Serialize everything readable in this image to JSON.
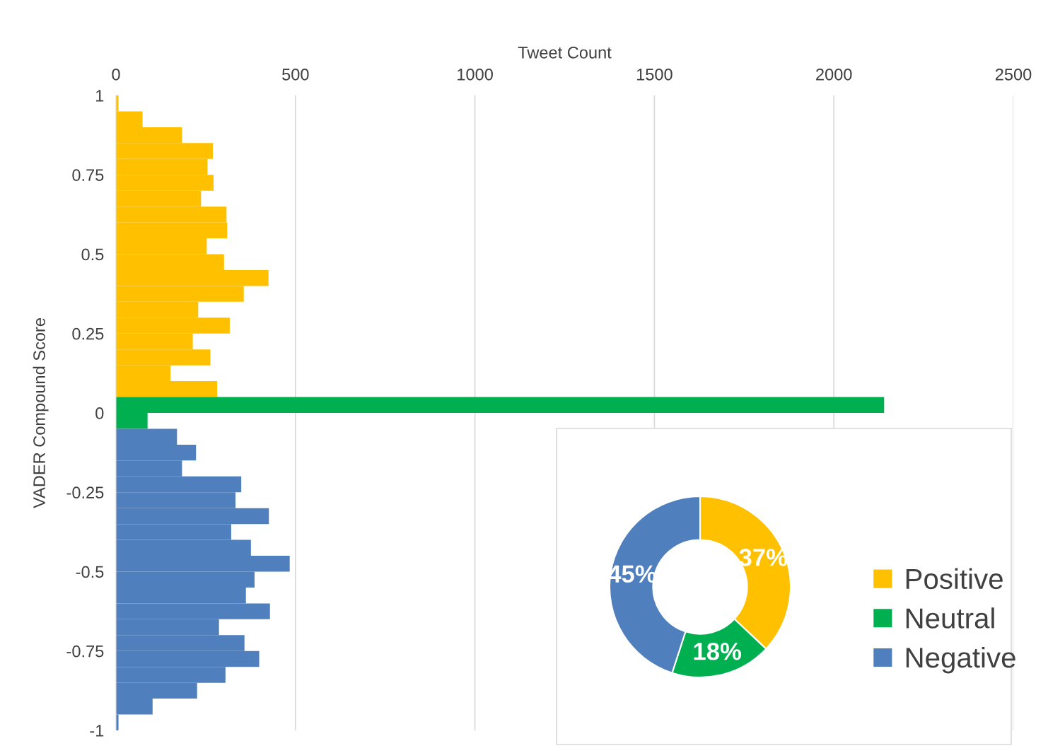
{
  "chart_data": [
    {
      "type": "histogram",
      "orientation": "horizontal",
      "xlabel": "Tweet Count",
      "ylabel": "VADER Compound Score",
      "bins": [
        1,
        0.95,
        0.9,
        0.85,
        0.8,
        0.75,
        0.7,
        0.65,
        0.6,
        0.55,
        0.5,
        0.45,
        0.4,
        0.35,
        0.3,
        0.25,
        0.2,
        0.15,
        0.1,
        0.05,
        0,
        -0.05,
        -0.1,
        -0.15,
        -0.2,
        -0.25,
        -0.3,
        -0.35,
        -0.4,
        -0.45,
        -0.5,
        -0.55,
        -0.6,
        -0.65,
        -0.7,
        -0.75,
        -0.8,
        -0.85,
        -0.9,
        -0.95,
        -1
      ],
      "values": [
        7,
        74,
        184,
        270,
        255,
        272,
        237,
        308,
        310,
        253,
        301,
        425,
        356,
        229,
        317,
        214,
        263,
        152,
        282,
        2140,
        88,
        170,
        223,
        184,
        349,
        333,
        426,
        321,
        376,
        484,
        386,
        362,
        429,
        287,
        358,
        399,
        305,
        226,
        102,
        7
      ],
      "colors": [
        "#ffc000",
        "#ffc000",
        "#ffc000",
        "#ffc000",
        "#ffc000",
        "#ffc000",
        "#ffc000",
        "#ffc000",
        "#ffc000",
        "#ffc000",
        "#ffc000",
        "#ffc000",
        "#ffc000",
        "#ffc000",
        "#ffc000",
        "#ffc000",
        "#ffc000",
        "#ffc000",
        "#ffc000",
        "#00b050",
        "#00b050",
        "#4f7fbd",
        "#4f7fbd",
        "#4f7fbd",
        "#4f7fbd",
        "#4f7fbd",
        "#4f7fbd",
        "#4f7fbd",
        "#4f7fbd",
        "#4f7fbd",
        "#4f7fbd",
        "#4f7fbd",
        "#4f7fbd",
        "#4f7fbd",
        "#4f7fbd",
        "#4f7fbd",
        "#4f7fbd",
        "#4f7fbd",
        "#4f7fbd",
        "#4f7fbd"
      ],
      "xlim": [
        0,
        2500
      ],
      "xticks": [
        0,
        500,
        1000,
        1500,
        2000,
        2500
      ],
      "ylim": [
        -1,
        1
      ],
      "yticks": [
        1,
        0.75,
        0.5,
        0.25,
        0,
        -0.25,
        -0.5,
        -0.75,
        -1
      ],
      "grid": "x"
    },
    {
      "type": "donut",
      "categories": [
        "Positive",
        "Neutral",
        "Negative"
      ],
      "values": [
        37,
        18,
        45
      ],
      "colors": [
        "#ffc000",
        "#00b050",
        "#4f7fbd"
      ],
      "value_labels": [
        "37%",
        "18%",
        "45%"
      ],
      "legend": "right"
    }
  ]
}
